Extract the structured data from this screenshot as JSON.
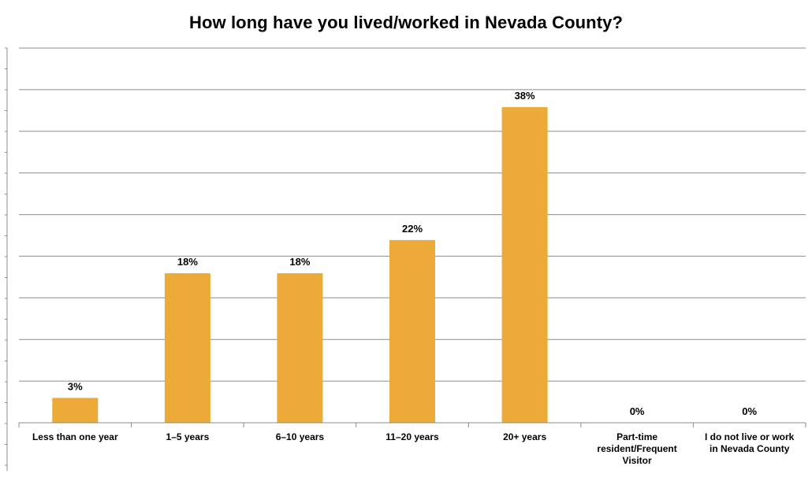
{
  "chart_data": {
    "type": "bar",
    "title": "How long have you lived/worked in Nevada County?",
    "categories": [
      [
        "Less than one year"
      ],
      [
        "1–5 years"
      ],
      [
        "6–10 years"
      ],
      [
        "11–20 years"
      ],
      [
        "20+ years"
      ],
      [
        "Part-time",
        "resident/Frequent",
        "Visitor"
      ],
      [
        "I do not live or work",
        "in Nevada County"
      ]
    ],
    "values": [
      3,
      18,
      18,
      22,
      38,
      0,
      0
    ],
    "data_labels": [
      "3%",
      "18%",
      "18%",
      "22%",
      "38%",
      "0%",
      "0%"
    ],
    "ylim": [
      0,
      45
    ],
    "grid": true,
    "legend": "none",
    "bar_color": "#ECAA38",
    "grid_color": "#8C8C8C"
  }
}
